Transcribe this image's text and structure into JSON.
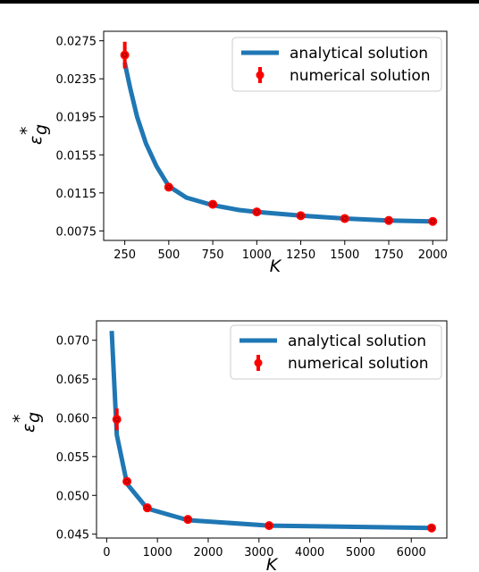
{
  "chart_data": [
    {
      "type": "line",
      "xlabel": "K",
      "ylabel_main": "ε",
      "ylabel_sub": "g",
      "ylabel_sup": "*",
      "xlim": [
        130,
        2080
      ],
      "ylim": [
        0.0065,
        0.0285
      ],
      "xticks": [
        250,
        500,
        750,
        1000,
        1250,
        1500,
        1750,
        2000
      ],
      "yticks": [
        0.0075,
        0.0115,
        0.0155,
        0.0195,
        0.0235,
        0.0275
      ],
      "ytick_labels": [
        "0.0075",
        "0.0115",
        "0.0155",
        "0.0195",
        "0.0235",
        "0.0275"
      ],
      "legend_position": "top-right",
      "series": [
        {
          "name": "analytical solution",
          "kind": "line",
          "color": "#1f77b4",
          "x": [
            250,
            280,
            320,
            370,
            430,
            500,
            600,
            750,
            900,
            1000,
            1250,
            1500,
            1750,
            2000
          ],
          "y": [
            0.0252,
            0.0226,
            0.0195,
            0.0167,
            0.0143,
            0.0122,
            0.011,
            0.0102,
            0.0097,
            0.0095,
            0.0091,
            0.0088,
            0.0086,
            0.0085
          ]
        },
        {
          "name": "numerical solution",
          "kind": "errorbar",
          "color": "#ff0000",
          "x": [
            250,
            500,
            750,
            1000,
            1250,
            1500,
            1750,
            2000
          ],
          "y": [
            0.026,
            0.0121,
            0.0103,
            0.0095,
            0.0091,
            0.0088,
            0.0086,
            0.0085
          ],
          "err": [
            0.0014,
            0.0002,
            0.0002,
            0.0002,
            0.0001,
            0.0001,
            0.0001,
            0.0001
          ]
        }
      ]
    },
    {
      "type": "line",
      "xlabel": "K",
      "ylabel_main": "ε",
      "ylabel_sub": "g",
      "ylabel_sup": "*",
      "xlim": [
        -200,
        6700
      ],
      "ylim": [
        0.0445,
        0.0725
      ],
      "xticks": [
        0,
        1000,
        2000,
        3000,
        4000,
        5000,
        6000
      ],
      "yticks": [
        0.045,
        0.05,
        0.055,
        0.06,
        0.065,
        0.07
      ],
      "ytick_labels": [
        "0.045",
        "0.050",
        "0.055",
        "0.060",
        "0.065",
        "0.070"
      ],
      "legend_position": "top-right",
      "series": [
        {
          "name": "analytical solution",
          "kind": "line",
          "color": "#1f77b4",
          "x": [
            100,
            200,
            400,
            800,
            1600,
            3200,
            6400
          ],
          "y": [
            0.0712,
            0.0578,
            0.0515,
            0.0483,
            0.0468,
            0.0461,
            0.0458
          ]
        },
        {
          "name": "numerical solution",
          "kind": "errorbar",
          "color": "#ff0000",
          "x": [
            200,
            400,
            800,
            1600,
            3200,
            6400
          ],
          "y": [
            0.0598,
            0.0518,
            0.0484,
            0.0469,
            0.0461,
            0.0458
          ],
          "err": [
            0.0014,
            0.0003,
            0.0002,
            0.0002,
            0.0001,
            0.0001
          ]
        }
      ]
    }
  ]
}
